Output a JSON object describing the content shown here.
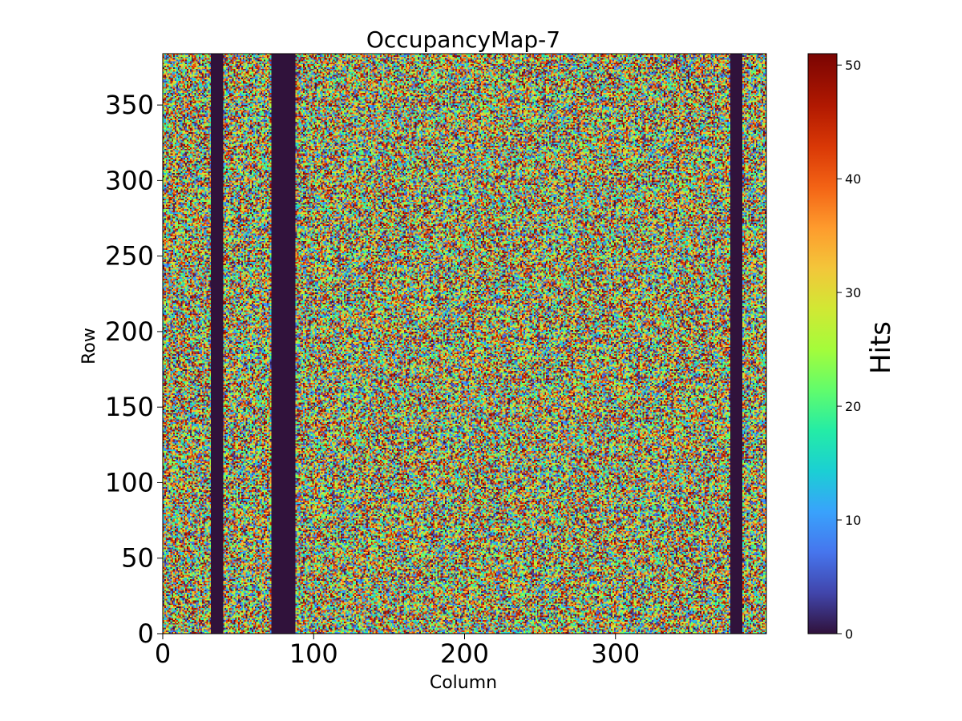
{
  "chart_data": {
    "type": "heatmap",
    "title": "OccupancyMap-7",
    "xlabel": "Column",
    "ylabel": "Row",
    "colorbar_label": "Hits",
    "colormap": "turbo",
    "xlim": [
      0,
      400
    ],
    "ylim": [
      0,
      384
    ],
    "grid_columns": 400,
    "grid_rows": 384,
    "value_range": [
      0,
      51
    ],
    "value_distribution": "uniform-random",
    "xticks": [
      0,
      100,
      200,
      300
    ],
    "yticks": [
      0,
      50,
      100,
      150,
      200,
      250,
      300,
      350
    ],
    "colorbar_ticks": [
      0,
      10,
      20,
      30,
      40,
      50
    ],
    "dead_column_bands": [
      {
        "start": 32,
        "end": 40,
        "value": 0
      },
      {
        "start": 72,
        "end": 88,
        "value": 0
      },
      {
        "start": 376,
        "end": 384,
        "value": 0
      }
    ]
  }
}
